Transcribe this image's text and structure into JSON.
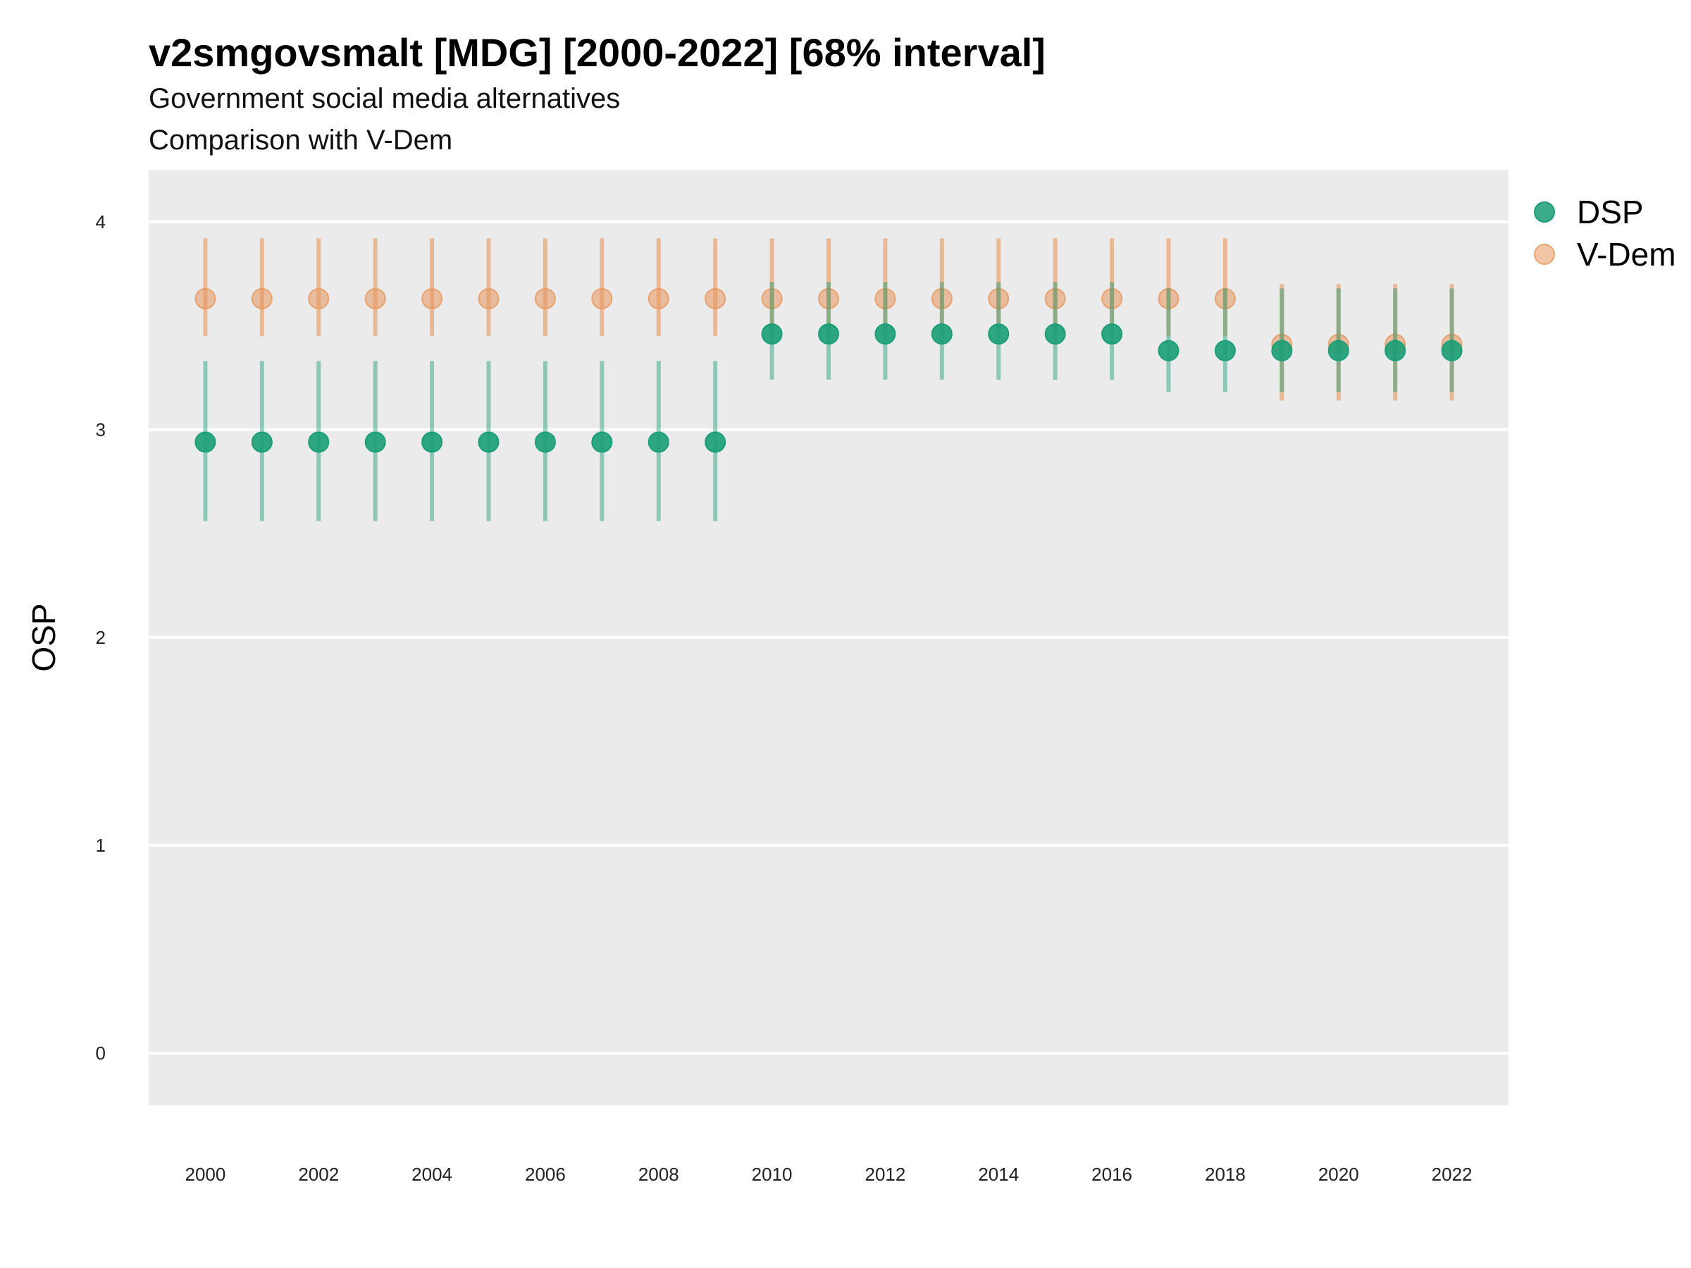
{
  "chart_data": {
    "type": "scatter",
    "title": "v2smgovsmalt [MDG] [2000-2022] [68% interval]",
    "subtitle": "Government social media alternatives",
    "subtitle2": "Comparison with V-Dem",
    "xlabel": "",
    "ylabel": "OSP",
    "x": [
      2000,
      2001,
      2002,
      2003,
      2004,
      2005,
      2006,
      2007,
      2008,
      2009,
      2010,
      2011,
      2012,
      2013,
      2014,
      2015,
      2016,
      2017,
      2018,
      2019,
      2020,
      2021,
      2022
    ],
    "xticks": [
      "2000",
      "2002",
      "2004",
      "2006",
      "2008",
      "2010",
      "2012",
      "2014",
      "2016",
      "2018",
      "2020",
      "2022"
    ],
    "yticks": [
      "0",
      "1",
      "2",
      "3",
      "4"
    ],
    "xlim": [
      1999.0,
      2023.0
    ],
    "ylim": [
      -0.25,
      4.25
    ],
    "grid": true,
    "legend_position": "right",
    "series": [
      {
        "name": "V-Dem",
        "color": "#e7965c",
        "values": [
          3.63,
          3.63,
          3.63,
          3.63,
          3.63,
          3.63,
          3.63,
          3.63,
          3.63,
          3.63,
          3.63,
          3.63,
          3.63,
          3.63,
          3.63,
          3.63,
          3.63,
          3.63,
          3.63,
          3.41,
          3.41,
          3.41,
          3.41
        ],
        "lower": [
          3.45,
          3.45,
          3.45,
          3.45,
          3.45,
          3.45,
          3.45,
          3.45,
          3.45,
          3.45,
          3.45,
          3.45,
          3.45,
          3.45,
          3.45,
          3.45,
          3.45,
          3.45,
          3.45,
          3.14,
          3.14,
          3.14,
          3.14
        ],
        "upper": [
          3.92,
          3.92,
          3.92,
          3.92,
          3.92,
          3.92,
          3.92,
          3.92,
          3.92,
          3.92,
          3.92,
          3.92,
          3.92,
          3.92,
          3.92,
          3.92,
          3.92,
          3.92,
          3.92,
          3.7,
          3.7,
          3.7,
          3.7
        ]
      },
      {
        "name": "DSP",
        "color": "#1b9e77",
        "values": [
          2.94,
          2.94,
          2.94,
          2.94,
          2.94,
          2.94,
          2.94,
          2.94,
          2.94,
          2.94,
          3.46,
          3.46,
          3.46,
          3.46,
          3.46,
          3.46,
          3.46,
          3.38,
          3.38,
          3.38,
          3.38,
          3.38,
          3.38
        ],
        "lower": [
          2.56,
          2.56,
          2.56,
          2.56,
          2.56,
          2.56,
          2.56,
          2.56,
          2.56,
          2.56,
          3.24,
          3.24,
          3.24,
          3.24,
          3.24,
          3.24,
          3.24,
          3.18,
          3.18,
          3.18,
          3.18,
          3.18,
          3.18
        ],
        "upper": [
          3.33,
          3.33,
          3.33,
          3.33,
          3.33,
          3.33,
          3.33,
          3.33,
          3.33,
          3.33,
          3.71,
          3.71,
          3.71,
          3.71,
          3.71,
          3.71,
          3.71,
          3.68,
          3.68,
          3.68,
          3.68,
          3.68,
          3.68
        ]
      }
    ],
    "legend": [
      {
        "label": "DSP",
        "color": "#1b9e77"
      },
      {
        "label": "V-Dem",
        "color": "#e7965c"
      }
    ],
    "colors": {
      "panel_bg": "#ebebeb",
      "grid": "#ffffff"
    }
  }
}
